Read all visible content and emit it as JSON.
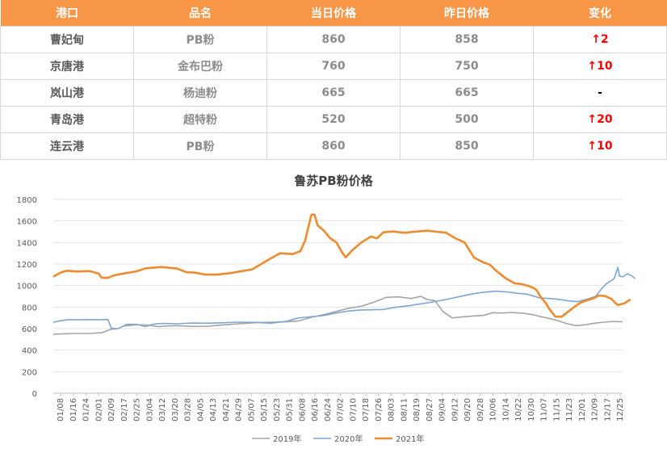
{
  "table": {
    "headers": [
      "港口",
      "品名",
      "当日价格",
      "昨日价格",
      "变化"
    ],
    "rows": [
      {
        "port": "曹妃甸",
        "product": "PB粉",
        "today": "860",
        "yesterday": "858",
        "change": "↑2"
      },
      {
        "port": "京唐港",
        "product": "金布巴粉",
        "today": "760",
        "yesterday": "750",
        "change": "↑10"
      },
      {
        "port": "岚山港",
        "product": "杨迪粉",
        "today": "665",
        "yesterday": "665",
        "change": "-"
      },
      {
        "port": "青岛港",
        "product": "超特粉",
        "today": "520",
        "yesterday": "500",
        "change": "↑20"
      },
      {
        "port": "连云港",
        "product": "PB粉",
        "today": "860",
        "yesterday": "850",
        "change": "↑10"
      }
    ]
  },
  "chart_data": {
    "type": "line",
    "title": "鲁苏PB粉价格",
    "xlabel": "",
    "ylabel": "",
    "ylim": [
      0,
      1800
    ],
    "yticks": [
      0,
      200,
      400,
      600,
      800,
      1000,
      1200,
      1400,
      1600,
      1800
    ],
    "x_tick_labels": [
      "01/08",
      "01/16",
      "01/24",
      "02/01",
      "02/09",
      "02/17",
      "02/25",
      "03/04",
      "03/12",
      "03/20",
      "03/28",
      "04/05",
      "04/13",
      "04/21",
      "04/29",
      "05/07",
      "05/15",
      "05/23",
      "05/31",
      "06/08",
      "06/16",
      "06/24",
      "07/02",
      "07/10",
      "07/18",
      "07/26",
      "08/03",
      "08/11",
      "08/19",
      "08/27",
      "09/04",
      "09/12",
      "09/20",
      "09/28",
      "10/06",
      "10/14",
      "10/22",
      "10/30",
      "11/07",
      "11/15",
      "11/23",
      "12/01",
      "12/09",
      "12/17",
      "12/25"
    ],
    "x_unit": "day-of-year",
    "x_range": [
      1,
      365
    ],
    "legend_position": "bottom",
    "grid": "horizontal",
    "series": [
      {
        "name": "2019年",
        "color": "#a5a5a5",
        "points": [
          [
            1,
            548
          ],
          [
            14,
            555
          ],
          [
            24,
            555
          ],
          [
            32,
            562
          ],
          [
            38,
            595
          ],
          [
            42,
            598
          ],
          [
            46,
            625
          ],
          [
            55,
            636
          ],
          [
            62,
            632
          ],
          [
            68,
            618
          ],
          [
            72,
            623
          ],
          [
            80,
            628
          ],
          [
            90,
            620
          ],
          [
            100,
            622
          ],
          [
            110,
            635
          ],
          [
            120,
            645
          ],
          [
            130,
            655
          ],
          [
            140,
            660
          ],
          [
            150,
            663
          ],
          [
            158,
            672
          ],
          [
            166,
            705
          ],
          [
            174,
            730
          ],
          [
            182,
            760
          ],
          [
            190,
            790
          ],
          [
            198,
            808
          ],
          [
            206,
            845
          ],
          [
            214,
            890
          ],
          [
            222,
            895
          ],
          [
            230,
            880
          ],
          [
            236,
            900
          ],
          [
            240,
            870
          ],
          [
            245,
            860
          ],
          [
            250,
            760
          ],
          [
            256,
            700
          ],
          [
            262,
            708
          ],
          [
            270,
            718
          ],
          [
            276,
            722
          ],
          [
            282,
            748
          ],
          [
            288,
            745
          ],
          [
            294,
            750
          ],
          [
            302,
            742
          ],
          [
            308,
            728
          ],
          [
            313,
            710
          ],
          [
            318,
            695
          ],
          [
            324,
            672
          ],
          [
            329,
            648
          ],
          [
            335,
            628
          ],
          [
            341,
            635
          ],
          [
            347,
            650
          ],
          [
            353,
            660
          ],
          [
            359,
            666
          ],
          [
            365,
            664
          ]
        ]
      },
      {
        "name": "2020年",
        "color": "#7ea6d4",
        "points": [
          [
            1,
            658
          ],
          [
            5,
            672
          ],
          [
            10,
            682
          ],
          [
            24,
            683
          ],
          [
            36,
            684
          ],
          [
            38,
            605
          ],
          [
            42,
            598
          ],
          [
            48,
            640
          ],
          [
            54,
            640
          ],
          [
            60,
            620
          ],
          [
            66,
            645
          ],
          [
            72,
            648
          ],
          [
            80,
            645
          ],
          [
            90,
            652
          ],
          [
            100,
            650
          ],
          [
            110,
            655
          ],
          [
            120,
            660
          ],
          [
            130,
            658
          ],
          [
            140,
            650
          ],
          [
            150,
            668
          ],
          [
            158,
            700
          ],
          [
            166,
            710
          ],
          [
            174,
            722
          ],
          [
            180,
            740
          ],
          [
            188,
            760
          ],
          [
            196,
            772
          ],
          [
            204,
            775
          ],
          [
            212,
            778
          ],
          [
            220,
            798
          ],
          [
            228,
            812
          ],
          [
            236,
            830
          ],
          [
            244,
            848
          ],
          [
            252,
            870
          ],
          [
            260,
            895
          ],
          [
            268,
            920
          ],
          [
            276,
            938
          ],
          [
            284,
            948
          ],
          [
            292,
            940
          ],
          [
            298,
            928
          ],
          [
            304,
            920
          ],
          [
            312,
            885
          ],
          [
            318,
            880
          ],
          [
            324,
            872
          ],
          [
            330,
            858
          ],
          [
            336,
            850
          ],
          [
            342,
            872
          ],
          [
            348,
            902
          ],
          [
            351,
            960
          ],
          [
            354,
            1010
          ],
          [
            357,
            1040
          ],
          [
            359,
            1055
          ],
          [
            360,
            1080
          ],
          [
            362,
            1170
          ],
          [
            363,
            1090
          ],
          [
            365,
            1080
          ],
          [
            368,
            1110
          ],
          [
            371,
            1090
          ],
          [
            373,
            1065
          ]
        ]
      },
      {
        "name": "2021年",
        "color": "#ed8b2e",
        "points": [
          [
            1,
            1083
          ],
          [
            6,
            1122
          ],
          [
            10,
            1138
          ],
          [
            16,
            1130
          ],
          [
            24,
            1135
          ],
          [
            30,
            1112
          ],
          [
            32,
            1072
          ],
          [
            36,
            1072
          ],
          [
            40,
            1095
          ],
          [
            46,
            1112
          ],
          [
            54,
            1132
          ],
          [
            60,
            1160
          ],
          [
            70,
            1172
          ],
          [
            80,
            1158
          ],
          [
            86,
            1124
          ],
          [
            92,
            1120
          ],
          [
            98,
            1102
          ],
          [
            106,
            1102
          ],
          [
            114,
            1115
          ],
          [
            120,
            1130
          ],
          [
            128,
            1150
          ],
          [
            134,
            1200
          ],
          [
            140,
            1252
          ],
          [
            146,
            1300
          ],
          [
            154,
            1292
          ],
          [
            159,
            1320
          ],
          [
            162,
            1415
          ],
          [
            166,
            1658
          ],
          [
            168,
            1660
          ],
          [
            170,
            1560
          ],
          [
            174,
            1510
          ],
          [
            178,
            1440
          ],
          [
            182,
            1400
          ],
          [
            186,
            1300
          ],
          [
            188,
            1262
          ],
          [
            192,
            1325
          ],
          [
            198,
            1400
          ],
          [
            204,
            1455
          ],
          [
            208,
            1438
          ],
          [
            212,
            1495
          ],
          [
            218,
            1502
          ],
          [
            226,
            1490
          ],
          [
            232,
            1500
          ],
          [
            240,
            1510
          ],
          [
            246,
            1500
          ],
          [
            252,
            1492
          ],
          [
            258,
            1440
          ],
          [
            264,
            1400
          ],
          [
            270,
            1260
          ],
          [
            276,
            1215
          ],
          [
            280,
            1195
          ],
          [
            284,
            1140
          ],
          [
            290,
            1070
          ],
          [
            296,
            1020
          ],
          [
            300,
            1015
          ],
          [
            304,
            1000
          ],
          [
            306,
            990
          ],
          [
            308,
            978
          ],
          [
            310,
            958
          ],
          [
            312,
            910
          ],
          [
            314,
            870
          ],
          [
            316,
            835
          ],
          [
            318,
            785
          ],
          [
            322,
            712
          ],
          [
            326,
            710
          ],
          [
            330,
            755
          ],
          [
            334,
            800
          ],
          [
            338,
            840
          ],
          [
            342,
            862
          ],
          [
            346,
            880
          ],
          [
            350,
            908
          ],
          [
            354,
            902
          ],
          [
            358,
            875
          ],
          [
            360,
            842
          ],
          [
            362,
            820
          ],
          [
            366,
            835
          ],
          [
            370,
            870
          ]
        ]
      }
    ]
  }
}
